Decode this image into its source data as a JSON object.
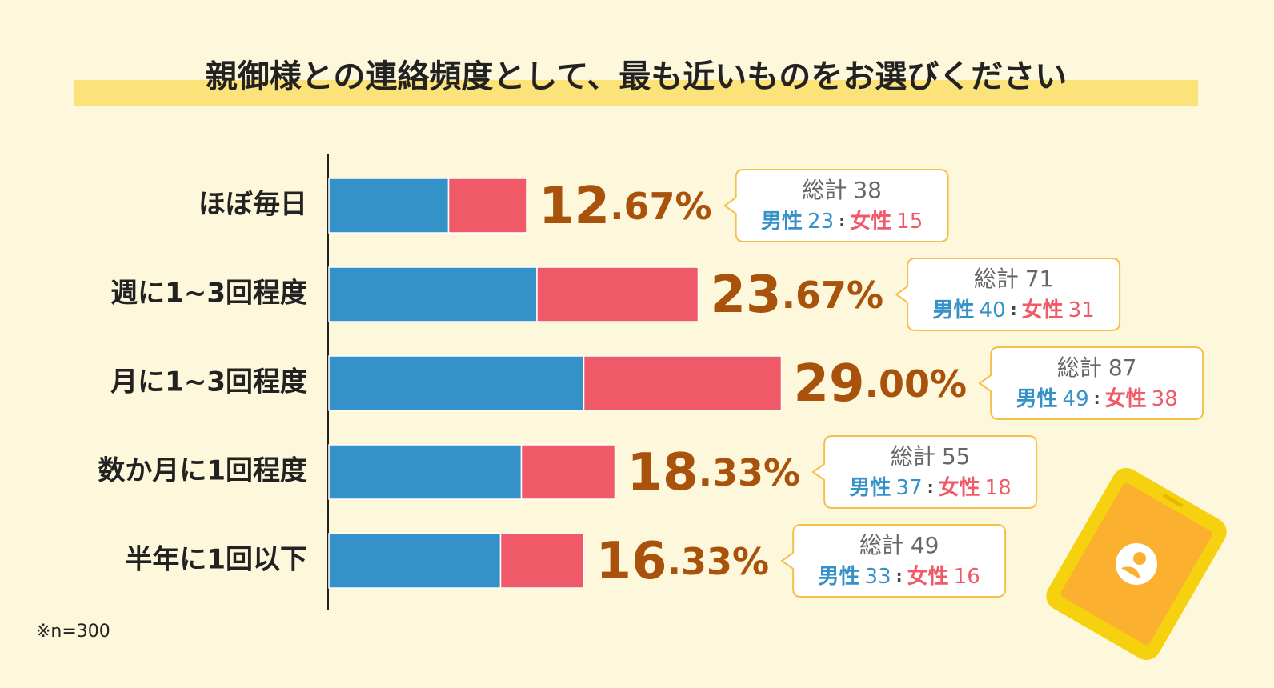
{
  "chart_data": {
    "type": "bar",
    "orientation": "horizontal",
    "stacked": true,
    "title": "親御様との連絡頻度として、最も近いものをお選びください",
    "note": "※n=300",
    "categories": [
      "ほぼ毎日",
      "週に1~3回程度",
      "月に1~3回程度",
      "数か月に1回程度",
      "半年に1回以下"
    ],
    "series": [
      {
        "name": "男性",
        "color": "#3592c8",
        "values": [
          23,
          40,
          49,
          37,
          33
        ]
      },
      {
        "name": "女性",
        "color": "#f05a68",
        "values": [
          15,
          31,
          38,
          18,
          16
        ]
      }
    ],
    "totals": {
      "label": "総計",
      "values": [
        38,
        71,
        87,
        55,
        49
      ]
    },
    "percents": {
      "values": [
        12.67,
        23.67,
        29.0,
        18.33,
        16.33
      ],
      "value_labels": [
        "12.67%",
        "23.67%",
        "29.00%",
        "18.33%",
        "16.33%"
      ]
    },
    "separator": ":"
  }
}
